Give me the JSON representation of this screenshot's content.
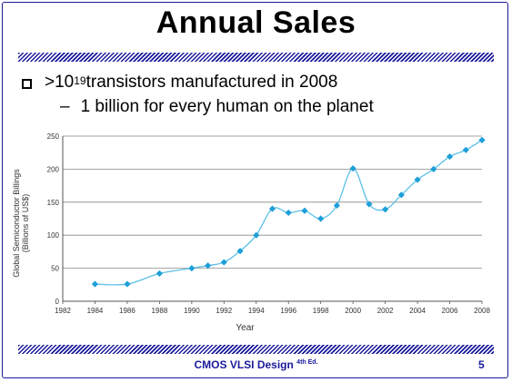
{
  "slide": {
    "title": "Annual Sales",
    "bullet": {
      "prefix": ">10",
      "superscript": "19",
      "suffix": " transistors manufactured in 2008"
    },
    "sub_bullet": "1 billion for every human on the planet",
    "sub_bullet_marker": "–",
    "footer": {
      "text": "CMOS VLSI Design ",
      "superscript": "4th Ed."
    },
    "page_number": "5"
  },
  "chart_data": {
    "type": "line",
    "title": "",
    "xlabel": "Year",
    "ylabel_lines": [
      "Global Semiconductor Billings",
      "(Billions of US$)"
    ],
    "xlim": [
      1982,
      2008
    ],
    "ylim": [
      0,
      250
    ],
    "x_ticks": [
      1982,
      1984,
      1986,
      1988,
      1990,
      1992,
      1994,
      1996,
      1998,
      2000,
      2002,
      2004,
      2006,
      2008
    ],
    "y_ticks": [
      0,
      50,
      100,
      150,
      200,
      250
    ],
    "grid": "horizontal",
    "marker": "diamond",
    "line_color": "#5bc0e6",
    "marker_color": "#1e9fd8",
    "series": [
      {
        "x": [
          1984,
          1986,
          1988,
          1990,
          1991,
          1992,
          1993,
          1994,
          1995,
          1996,
          1997,
          1998,
          1999,
          2000,
          2001,
          2002,
          2003,
          2004,
          2005,
          2006,
          2007,
          2008
        ],
        "values": [
          26,
          26,
          42,
          50,
          54,
          59,
          76,
          100,
          140,
          134,
          137,
          125,
          145,
          201,
          147,
          139,
          161,
          184,
          200,
          219,
          229,
          244
        ]
      }
    ]
  },
  "colors": {
    "accent": "#1a1a9c"
  }
}
